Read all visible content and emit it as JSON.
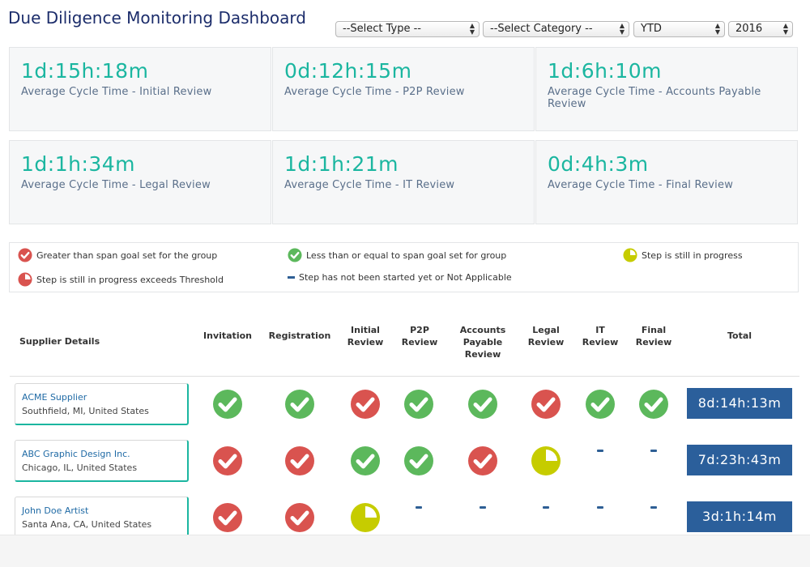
{
  "title": "Due Diligence Monitoring Dashboard",
  "filters": {
    "type": "--Select Type --",
    "category": "--Select Category --",
    "period": "YTD",
    "year": "2016"
  },
  "cards": [
    {
      "value": "1d:15h:18m",
      "label": "Average Cycle Time - Initial Review"
    },
    {
      "value": "0d:12h:15m",
      "label": "Average Cycle Time - P2P Review"
    },
    {
      "value": "1d:6h:10m",
      "label": "Average Cycle Time - Accounts Payable Review"
    },
    {
      "value": "1d:1h:34m",
      "label": "Average Cycle Time - Legal Review"
    },
    {
      "value": "1d:1h:21m",
      "label": "Average Cycle Time - IT Review"
    },
    {
      "value": "0d:4h:3m",
      "label": "Average Cycle Time - Final Review"
    }
  ],
  "legend": {
    "greater": "Greater than span goal set for the group",
    "less": "Less than or equal to span goal set for group",
    "progress": "Step is still in progress",
    "exceeds": "Step is still in progress exceeds Threshold",
    "not_started": "Step has not been started yet or Not Applicable"
  },
  "colors": {
    "red": "#d9534f",
    "green": "#5cb85c",
    "yellow": "#c6cc00",
    "teal": "#1bb6a0",
    "navy": "#2b5f9b"
  },
  "table": {
    "headers": {
      "supplier": "Supplier Details",
      "invitation": "Invitation",
      "registration": "Registration",
      "initial": [
        "Initial",
        "Review"
      ],
      "p2p": [
        "P2P",
        "Review"
      ],
      "ap": [
        "Accounts",
        "Payable",
        "Review"
      ],
      "legal": [
        "Legal",
        "Review"
      ],
      "it": [
        "IT",
        "Review"
      ],
      "final": [
        "Final",
        "Review"
      ],
      "total": "Total"
    },
    "rows": [
      {
        "name": "ACME Supplier",
        "location": "Southfield, MI, United States",
        "statuses": [
          "green",
          "green",
          "red",
          "green",
          "green",
          "red",
          "green",
          "green"
        ],
        "total": "8d:14h:13m"
      },
      {
        "name": "ABC Graphic Design Inc.",
        "location": "Chicago, IL, United States",
        "statuses": [
          "red",
          "red",
          "green",
          "green",
          "red",
          "progress",
          "dash",
          "dash"
        ],
        "total": "7d:23h:43m"
      },
      {
        "name": "John Doe Artist",
        "location": "Santa Ana, CA, United States",
        "statuses": [
          "red",
          "red",
          "progress",
          "dash",
          "dash",
          "dash",
          "dash",
          "dash"
        ],
        "total": "3d:1h:14m"
      }
    ]
  }
}
